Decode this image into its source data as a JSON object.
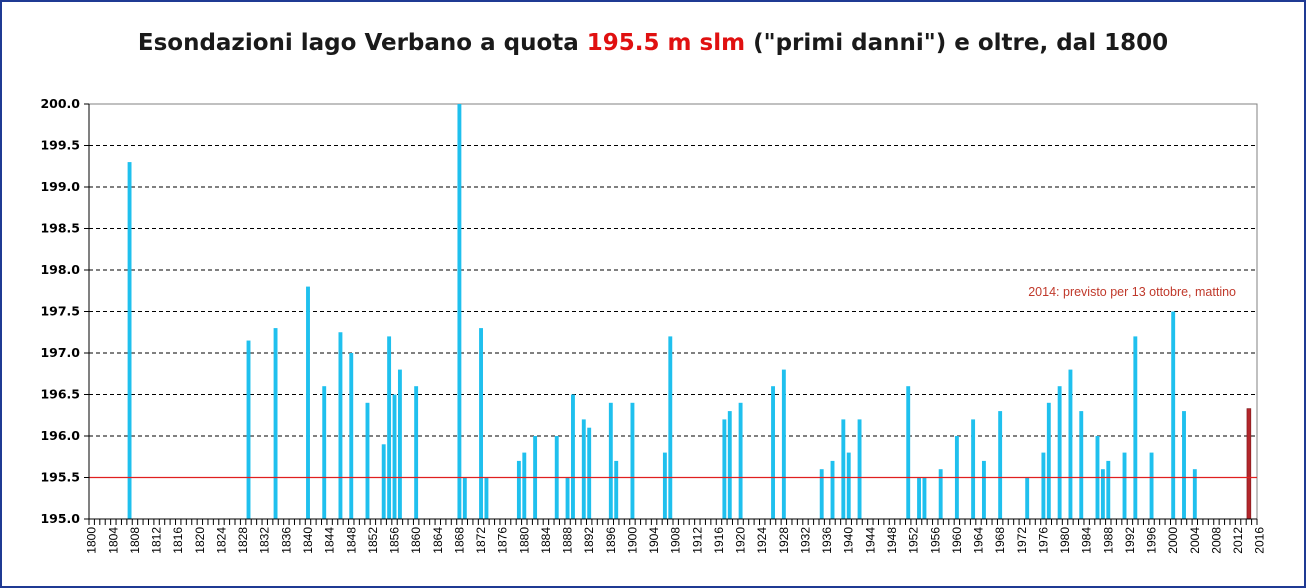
{
  "chart_data": {
    "type": "bar",
    "title": {
      "part1": "Esondazioni lago Verbano a quota ",
      "highlight": "195.5 m slm",
      "part2": " (\"primi danni\") e oltre, dal 1800"
    },
    "xlabel": "",
    "ylabel": "",
    "xlim": [
      1800,
      2016
    ],
    "ylim": [
      195.0,
      200.0
    ],
    "y_ticks": [
      "195.0",
      "195.5",
      "196.0",
      "196.5",
      "197.0",
      "197.5",
      "198.0",
      "198.5",
      "199.0",
      "199.5",
      "200.0"
    ],
    "x_tick_step": 4,
    "grid": "horizontal-dashed",
    "threshold": 195.5,
    "bar_color": "#1fc0ee",
    "forecast_color": "#b3262b",
    "threshold_color": "#e02020",
    "annotation": "2014: previsto per 13 ottobre, mattino",
    "points": [
      {
        "year": 1807,
        "value": 199.3
      },
      {
        "year": 1829,
        "value": 197.15
      },
      {
        "year": 1834,
        "value": 197.3
      },
      {
        "year": 1840,
        "value": 197.8
      },
      {
        "year": 1843,
        "value": 196.6
      },
      {
        "year": 1846,
        "value": 197.25
      },
      {
        "year": 1848,
        "value": 197.0
      },
      {
        "year": 1851,
        "value": 196.4
      },
      {
        "year": 1854,
        "value": 195.9
      },
      {
        "year": 1855,
        "value": 197.2
      },
      {
        "year": 1856,
        "value": 196.5
      },
      {
        "year": 1857,
        "value": 196.8
      },
      {
        "year": 1860,
        "value": 196.6
      },
      {
        "year": 1868,
        "value": 200.0
      },
      {
        "year": 1869,
        "value": 195.5
      },
      {
        "year": 1872,
        "value": 197.3
      },
      {
        "year": 1873,
        "value": 195.5
      },
      {
        "year": 1879,
        "value": 195.7
      },
      {
        "year": 1880,
        "value": 195.8
      },
      {
        "year": 1882,
        "value": 196.0
      },
      {
        "year": 1886,
        "value": 196.0
      },
      {
        "year": 1888,
        "value": 195.5
      },
      {
        "year": 1889,
        "value": 196.5
      },
      {
        "year": 1891,
        "value": 196.2
      },
      {
        "year": 1892,
        "value": 196.1
      },
      {
        "year": 1896,
        "value": 196.4
      },
      {
        "year": 1897,
        "value": 195.7
      },
      {
        "year": 1900,
        "value": 196.4
      },
      {
        "year": 1906,
        "value": 195.8
      },
      {
        "year": 1907,
        "value": 197.2
      },
      {
        "year": 1917,
        "value": 196.2
      },
      {
        "year": 1918,
        "value": 196.3
      },
      {
        "year": 1920,
        "value": 196.4
      },
      {
        "year": 1926,
        "value": 196.6
      },
      {
        "year": 1928,
        "value": 196.8
      },
      {
        "year": 1935,
        "value": 195.6
      },
      {
        "year": 1937,
        "value": 195.7
      },
      {
        "year": 1939,
        "value": 196.2
      },
      {
        "year": 1940,
        "value": 195.8
      },
      {
        "year": 1942,
        "value": 196.2
      },
      {
        "year": 1951,
        "value": 196.6
      },
      {
        "year": 1953,
        "value": 195.5
      },
      {
        "year": 1954,
        "value": 195.5
      },
      {
        "year": 1957,
        "value": 195.6
      },
      {
        "year": 1960,
        "value": 196.0
      },
      {
        "year": 1963,
        "value": 196.2
      },
      {
        "year": 1965,
        "value": 195.7
      },
      {
        "year": 1968,
        "value": 196.3
      },
      {
        "year": 1973,
        "value": 195.5
      },
      {
        "year": 1976,
        "value": 195.8
      },
      {
        "year": 1977,
        "value": 196.4
      },
      {
        "year": 1979,
        "value": 196.6
      },
      {
        "year": 1981,
        "value": 196.8
      },
      {
        "year": 1983,
        "value": 196.3
      },
      {
        "year": 1986,
        "value": 196.0
      },
      {
        "year": 1987,
        "value": 195.6
      },
      {
        "year": 1988,
        "value": 195.7
      },
      {
        "year": 1991,
        "value": 195.8
      },
      {
        "year": 1993,
        "value": 197.2
      },
      {
        "year": 1996,
        "value": 195.8
      },
      {
        "year": 2000,
        "value": 197.5
      },
      {
        "year": 2002,
        "value": 196.3
      },
      {
        "year": 2004,
        "value": 195.6
      },
      {
        "year": 2014,
        "value": 196.33,
        "forecast": true
      }
    ]
  }
}
